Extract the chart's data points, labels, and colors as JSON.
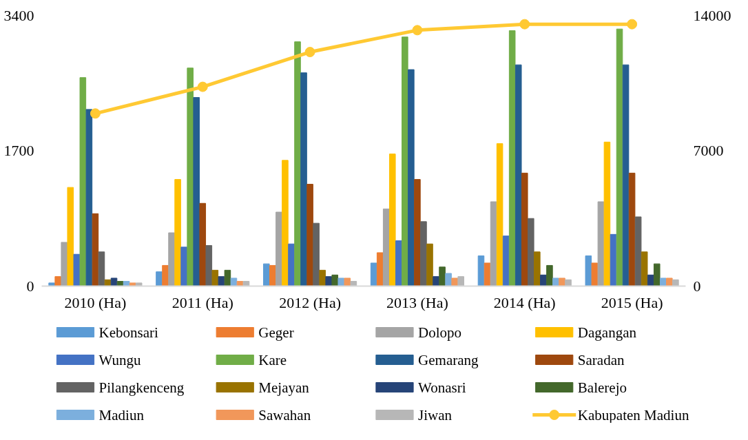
{
  "chart_data": {
    "type": "bar",
    "categories": [
      "2010 (Ha)",
      "2011 (Ha)",
      "2012 (Ha)",
      "2013 (Ha)",
      "2014 (Ha)",
      "2015 (Ha)"
    ],
    "ylim": [
      0,
      3400
    ],
    "yticks": [
      0,
      1700,
      3400
    ],
    "y2lim": [
      0,
      14000
    ],
    "y2ticks": [
      0,
      7000,
      14000
    ],
    "grid": false,
    "legend": "bottom",
    "series": [
      {
        "name": "Kebonsari",
        "color": "#5b9bd5",
        "values": [
          40,
          180,
          280,
          290,
          380,
          380
        ]
      },
      {
        "name": "Geger",
        "color": "#ed7d31",
        "values": [
          120,
          260,
          260,
          420,
          290,
          290
        ]
      },
      {
        "name": "Dolopo",
        "color": "#a5a5a5",
        "values": [
          550,
          670,
          930,
          970,
          1060,
          1060
        ]
      },
      {
        "name": "Dagangan",
        "color": "#ffc000",
        "values": [
          1240,
          1340,
          1580,
          1660,
          1790,
          1810
        ]
      },
      {
        "name": "Wungu",
        "color": "#4472c4",
        "values": [
          400,
          490,
          530,
          570,
          630,
          650
        ]
      },
      {
        "name": "Kare",
        "color": "#70ad47",
        "values": [
          2620,
          2740,
          3070,
          3130,
          3210,
          3230
        ]
      },
      {
        "name": "Gemarang",
        "color": "#255e91",
        "values": [
          2220,
          2370,
          2680,
          2720,
          2780,
          2780
        ]
      },
      {
        "name": "Saradan",
        "color": "#9e480e",
        "values": [
          910,
          1040,
          1280,
          1340,
          1420,
          1420
        ]
      },
      {
        "name": "Pilangkenceng",
        "color": "#636363",
        "values": [
          430,
          510,
          790,
          810,
          850,
          870
        ]
      },
      {
        "name": "Mejayan",
        "color": "#997300",
        "values": [
          80,
          200,
          200,
          530,
          430,
          430
        ]
      },
      {
        "name": "Wonasri",
        "color": "#264478",
        "values": [
          100,
          120,
          120,
          120,
          140,
          140
        ]
      },
      {
        "name": "Balerejo",
        "color": "#43682b",
        "values": [
          60,
          200,
          140,
          240,
          260,
          280
        ]
      },
      {
        "name": "Madiun",
        "color": "#7cafdd",
        "values": [
          60,
          100,
          100,
          160,
          100,
          100
        ]
      },
      {
        "name": "Sawahan",
        "color": "#f1975a",
        "values": [
          40,
          60,
          100,
          100,
          100,
          100
        ]
      },
      {
        "name": "Jiwan",
        "color": "#b7b7b7",
        "values": [
          40,
          60,
          60,
          120,
          80,
          80
        ]
      },
      {
        "name": "Kabupaten Madiun",
        "color": "#ffc933",
        "type": "line",
        "axis": "y2",
        "marker": "circle",
        "values": [
          8930,
          10310,
          12110,
          13240,
          13550,
          13550
        ]
      }
    ]
  }
}
